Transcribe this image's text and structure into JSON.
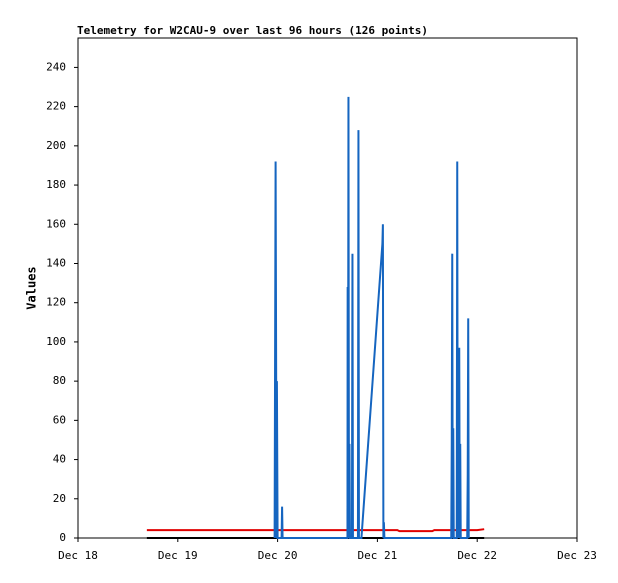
{
  "chart_data": {
    "type": "line",
    "title": "Telemetry for W2CAU-9 over last 96 hours (126 points)",
    "y_label": "Values",
    "xlim": [
      0,
      5
    ],
    "xticks": [
      {
        "value": 0,
        "label": "Dec 18"
      },
      {
        "value": 1,
        "label": "Dec 19"
      },
      {
        "value": 2,
        "label": "Dec 20"
      },
      {
        "value": 3,
        "label": "Dec 21"
      },
      {
        "value": 4,
        "label": "Dec 22"
      },
      {
        "value": 5,
        "label": "Dec 23"
      }
    ],
    "ylim": [
      0,
      255
    ],
    "yticks": [
      0,
      20,
      40,
      60,
      80,
      100,
      120,
      140,
      160,
      180,
      200,
      220,
      240
    ],
    "series": [
      {
        "color": "#000000",
        "x": [
          0.69,
          4.07
        ],
        "values": [
          0,
          0
        ]
      },
      {
        "color": "#e00000",
        "x": [
          0.69,
          3.2,
          3.22,
          3.55,
          3.57,
          4.0,
          4.07
        ],
        "values": [
          4,
          4,
          3.5,
          3.5,
          4,
          4,
          4.5
        ]
      },
      {
        "color": "#1565c0",
        "x": [
          1.97,
          1.98,
          1.99,
          1.993,
          2.0,
          2.04,
          2.045,
          2.05,
          2.7,
          2.702,
          2.705,
          2.71,
          2.715,
          2.72,
          2.725,
          2.745,
          2.75,
          2.755,
          2.805,
          2.81,
          2.815,
          2.84,
          3.05,
          3.055,
          3.06,
          3.065,
          3.07,
          3.74,
          3.745,
          3.75,
          3.755,
          3.76,
          3.765,
          3.795,
          3.8,
          3.805,
          3.81,
          3.82,
          3.825,
          3.83,
          3.835,
          3.9,
          3.905,
          3.91,
          3.915
        ],
        "values": [
          0,
          192,
          0,
          80,
          0,
          0,
          16,
          0,
          0,
          128,
          0,
          225,
          0,
          48,
          0,
          0,
          145,
          0,
          0,
          208,
          0,
          0,
          150,
          160,
          0,
          8,
          0,
          0,
          48,
          145,
          0,
          56,
          0,
          0,
          192,
          0,
          43,
          97,
          0,
          48,
          0,
          0,
          32,
          112,
          0
        ]
      }
    ]
  }
}
